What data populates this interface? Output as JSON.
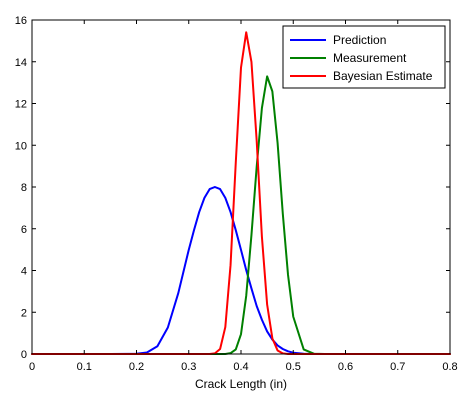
{
  "chart_data": {
    "type": "line",
    "title": "",
    "xlabel": "Crack Length (in)",
    "ylabel": "",
    "xlim": [
      0,
      0.8
    ],
    "ylim": [
      0,
      16
    ],
    "xticks": [
      0,
      0.1,
      0.2,
      0.3,
      0.4,
      0.5,
      0.6,
      0.7,
      0.8
    ],
    "yticks": [
      0,
      2,
      4,
      6,
      8,
      10,
      12,
      14,
      16
    ],
    "xtick_labels": [
      "0",
      "0.1",
      "0.2",
      "0.3",
      "0.4",
      "0.5",
      "0.6",
      "0.7",
      "0.8"
    ],
    "ytick_labels": [
      "0",
      "2",
      "4",
      "6",
      "8",
      "10",
      "12",
      "14",
      "16"
    ],
    "grid": false,
    "legend_position": "top-right",
    "x": [
      0,
      0.05,
      0.1,
      0.15,
      0.2,
      0.22,
      0.24,
      0.26,
      0.28,
      0.3,
      0.31,
      0.32,
      0.33,
      0.34,
      0.35,
      0.36,
      0.37,
      0.38,
      0.39,
      0.4,
      0.41,
      0.42,
      0.43,
      0.44,
      0.45,
      0.46,
      0.47,
      0.48,
      0.49,
      0.5,
      0.52,
      0.54,
      0.56,
      0.6,
      0.7,
      0.8
    ],
    "series": [
      {
        "name": "Prediction",
        "color": "#0000ff",
        "values": [
          0,
          0,
          0,
          0,
          0.01,
          0.07,
          0.37,
          1.27,
          2.92,
          4.99,
          5.93,
          6.8,
          7.48,
          7.9,
          8.0,
          7.9,
          7.48,
          6.8,
          5.93,
          4.99,
          4.02,
          3.14,
          2.3,
          1.64,
          1.08,
          0.69,
          0.41,
          0.24,
          0.13,
          0.06,
          0.01,
          0,
          0,
          0,
          0,
          0
        ]
      },
      {
        "name": "Measurement",
        "color": "#008000",
        "values": [
          0,
          0,
          0,
          0,
          0,
          0,
          0,
          0,
          0,
          0,
          0,
          0,
          0,
          0,
          0,
          0,
          0,
          0.04,
          0.22,
          0.95,
          2.79,
          5.7,
          8.96,
          11.78,
          13.3,
          12.58,
          10.12,
          6.72,
          3.79,
          1.79,
          0.22,
          0.01,
          0,
          0,
          0,
          0
        ]
      },
      {
        "name": "Bayesian Estimate",
        "color": "#ff0000",
        "values": [
          0,
          0,
          0,
          0,
          0,
          0,
          0,
          0,
          0,
          0,
          0,
          0,
          0,
          0,
          0.03,
          0.24,
          1.29,
          4.26,
          9.18,
          13.72,
          15.41,
          13.99,
          10.23,
          5.62,
          2.37,
          0.75,
          0.17,
          0.03,
          0,
          0,
          0,
          0,
          0,
          0,
          0,
          0
        ]
      }
    ]
  }
}
